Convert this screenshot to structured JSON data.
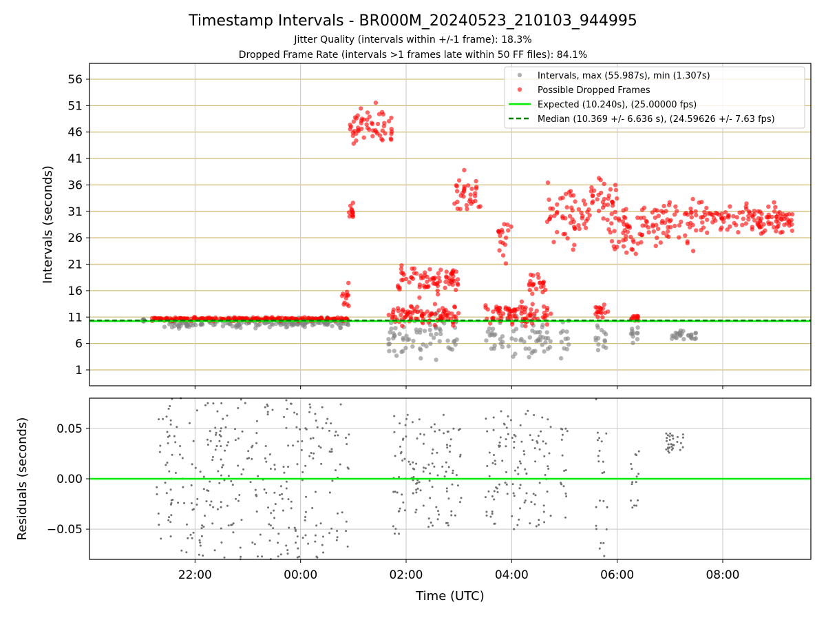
{
  "chart_data": [
    {
      "type": "scatter",
      "title": "Timestamp Intervals - BR000M_20240523_210103_944995",
      "subtitle_lines": [
        "Jitter Quality (intervals within +/-1 frame): 18.3%",
        "Dropped Frame Rate (intervals >1 frames late within 50 FF files): 84.1%"
      ],
      "xlabel": "",
      "ylabel": "Intervals (seconds)",
      "ylim": [
        -2,
        59
      ],
      "yticks": [
        "1",
        "6",
        "11",
        "16",
        "21",
        "26",
        "31",
        "36",
        "41",
        "46",
        "51",
        "56"
      ],
      "grid": "on",
      "legend_position": "top-right",
      "legend": [
        "Intervals, max (55.987s), min (1.307s)",
        "Possible Dropped Frames",
        "Expected (10.240s), (25.00000 fps)",
        "Median (10.369 +/- 6.636 s), (24.59626 +/- 7.63 fps)"
      ],
      "expected_interval": 10.24,
      "median_interval": 10.369,
      "series": [
        {
          "name": "Intervals, max (55.987s), min (1.307s)",
          "color": "#808080",
          "segments": [
            {
              "x_start": "21:00",
              "x_end": "21:02",
              "y_center": 10.4,
              "y_spread": 0.5
            },
            {
              "x_start": "21:25",
              "x_end": "00:55",
              "y_center": 9.9,
              "y_spread": 1.2
            },
            {
              "x_start": "01:40",
              "x_end": "03:00",
              "y_center": 7.5,
              "y_spread": 5.5
            },
            {
              "x_start": "03:30",
              "x_end": "03:50",
              "y_center": 7.0,
              "y_spread": 4.5
            },
            {
              "x_start": "03:55",
              "x_end": "04:45",
              "y_center": 7.0,
              "y_spread": 5.5
            },
            {
              "x_start": "04:55",
              "x_end": "05:05",
              "y_center": 6.5,
              "y_spread": 5.0
            },
            {
              "x_start": "05:35",
              "x_end": "05:50",
              "y_center": 7.5,
              "y_spread": 4.0
            },
            {
              "x_start": "06:15",
              "x_end": "06:25",
              "y_center": 8.0,
              "y_spread": 3.0
            },
            {
              "x_start": "07:00",
              "x_end": "07:30",
              "y_center": 7.5,
              "y_spread": 1.5
            }
          ]
        },
        {
          "name": "Possible Dropped Frames",
          "color": "#ff0000",
          "segments": [
            {
              "x_start": "21:10",
              "x_end": "00:55",
              "y_center": 10.6,
              "y_spread": 0.5
            },
            {
              "x_start": "00:45",
              "x_end": "00:55",
              "y_center": 15.0,
              "y_spread": 4.0
            },
            {
              "x_start": "00:55",
              "x_end": "01:00",
              "y_center": 31.0,
              "y_spread": 2.0
            },
            {
              "x_start": "00:55",
              "x_end": "01:45",
              "y_center": 47.0,
              "y_spread": 5.0
            },
            {
              "x_start": "01:40",
              "x_end": "03:00",
              "y_center": 11.5,
              "y_spread": 2.5
            },
            {
              "x_start": "01:50",
              "x_end": "03:00",
              "y_center": 18.0,
              "y_spread": 4.0
            },
            {
              "x_start": "02:55",
              "x_end": "03:25",
              "y_center": 34.0,
              "y_spread": 5.5
            },
            {
              "x_start": "03:30",
              "x_end": "04:45",
              "y_center": 11.5,
              "y_spread": 3.0
            },
            {
              "x_start": "03:45",
              "x_end": "04:00",
              "y_center": 27.0,
              "y_spread": 8.0
            },
            {
              "x_start": "04:20",
              "x_end": "04:40",
              "y_center": 17.0,
              "y_spread": 3.0
            },
            {
              "x_start": "04:40",
              "x_end": "05:30",
              "y_center": 30.0,
              "y_spread": 9.0
            },
            {
              "x_start": "05:30",
              "x_end": "06:00",
              "y_center": 33.0,
              "y_spread": 5.0
            },
            {
              "x_start": "05:35",
              "x_end": "05:50",
              "y_center": 12.0,
              "y_spread": 2.0
            },
            {
              "x_start": "05:50",
              "x_end": "06:25",
              "y_center": 27.0,
              "y_spread": 6.0
            },
            {
              "x_start": "06:15",
              "x_end": "06:25",
              "y_center": 11.0,
              "y_spread": 1.0
            },
            {
              "x_start": "06:25",
              "x_end": "07:30",
              "y_center": 29.0,
              "y_spread": 6.0
            },
            {
              "x_start": "07:30",
              "x_end": "09:20",
              "y_center": 29.5,
              "y_spread": 4.0
            }
          ]
        }
      ]
    },
    {
      "type": "scatter",
      "title": "",
      "xlabel": "Time (UTC)",
      "ylabel": "Residuals (seconds)",
      "ylim": [
        -0.08,
        0.08
      ],
      "yticks": [
        "−0.05",
        "0.00",
        "0.05"
      ],
      "xticks": [
        "22:00",
        "00:00",
        "02:00",
        "04:00",
        "06:00",
        "08:00"
      ],
      "grid": "on",
      "reference_line": 0.0,
      "series": [
        {
          "name": "",
          "color": "#707070",
          "segments": [
            {
              "x_start": "21:15",
              "x_end": "00:55",
              "y_center": 0.0,
              "y_spread": 0.08
            },
            {
              "x_start": "01:45",
              "x_end": "03:05",
              "y_center": 0.005,
              "y_spread": 0.06
            },
            {
              "x_start": "03:30",
              "x_end": "04:45",
              "y_center": 0.01,
              "y_spread": 0.06
            },
            {
              "x_start": "04:55",
              "x_end": "05:05",
              "y_center": 0.0,
              "y_spread": 0.05
            },
            {
              "x_start": "05:35",
              "x_end": "05:50",
              "y_center": 0.0,
              "y_spread": 0.08
            },
            {
              "x_start": "06:15",
              "x_end": "06:25",
              "y_center": 0.0,
              "y_spread": 0.03
            },
            {
              "x_start": "06:55",
              "x_end": "07:15",
              "y_center": 0.035,
              "y_spread": 0.01
            }
          ]
        }
      ]
    }
  ]
}
